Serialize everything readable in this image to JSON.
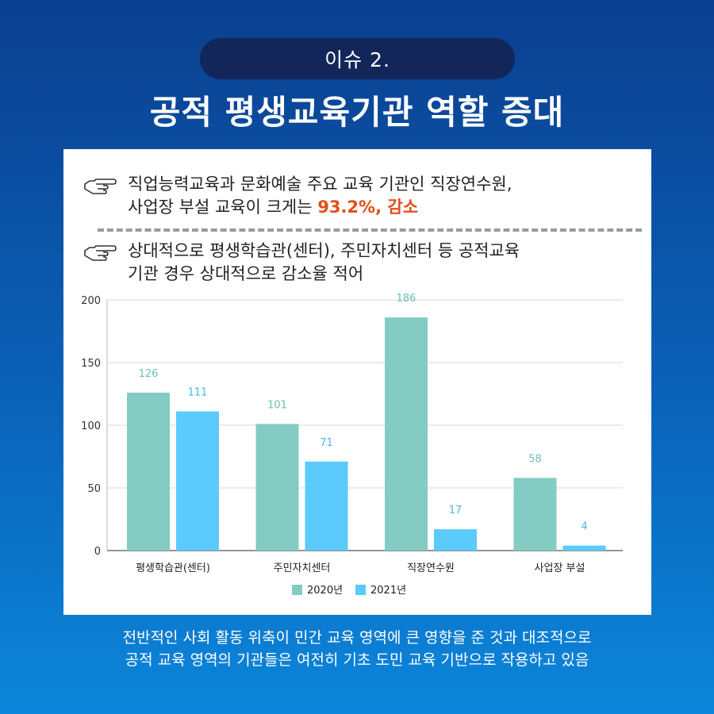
{
  "header": {
    "issue_label": "이슈 2.",
    "title": "공적 평생교육기관 역할 증대"
  },
  "points": [
    {
      "line1": "직업능력교육과 문화예술 주요 교육 기관인 직장연수원,",
      "line2_prefix": "사업장 부설 교육이 크게는 ",
      "line2_highlight": "93.2%, 감소"
    },
    {
      "line1": "상대적으로 평생학습관(센터), 주민자치센터 등 공적교육",
      "line2": "기관 경우 상대적으로 감소율 적어"
    }
  ],
  "icons": {
    "bullet": "pointing-hand-icon"
  },
  "colors": {
    "highlight": "#e24e1b",
    "series_2020": "#84cbc3",
    "series_2021": "#5bcafc",
    "label_2020": "#6dbfb6",
    "label_2021": "#4ab8e8"
  },
  "chart_data": {
    "type": "bar",
    "categories": [
      "평생학습관(센터)",
      "주민자치센터",
      "직장연수원",
      "사업장 부설"
    ],
    "series": [
      {
        "name": "2020년",
        "values": [
          126,
          101,
          186,
          58
        ]
      },
      {
        "name": "2021년",
        "values": [
          111,
          71,
          17,
          4
        ]
      }
    ],
    "ylim": [
      0,
      200
    ],
    "yticks": [
      0,
      50,
      100,
      150,
      200
    ],
    "grid": true,
    "legend": "bottom-center",
    "title": "",
    "xlabel": "",
    "ylabel": ""
  },
  "footer": {
    "line1": "전반적인 사회 활동 위축이 민간 교육 영역에 큰 영향을 준 것과 대조적으로",
    "line2": "공적 교육 영역의 기관들은 여전히 기초 도민 교육 기반으로 작용하고 있음"
  }
}
